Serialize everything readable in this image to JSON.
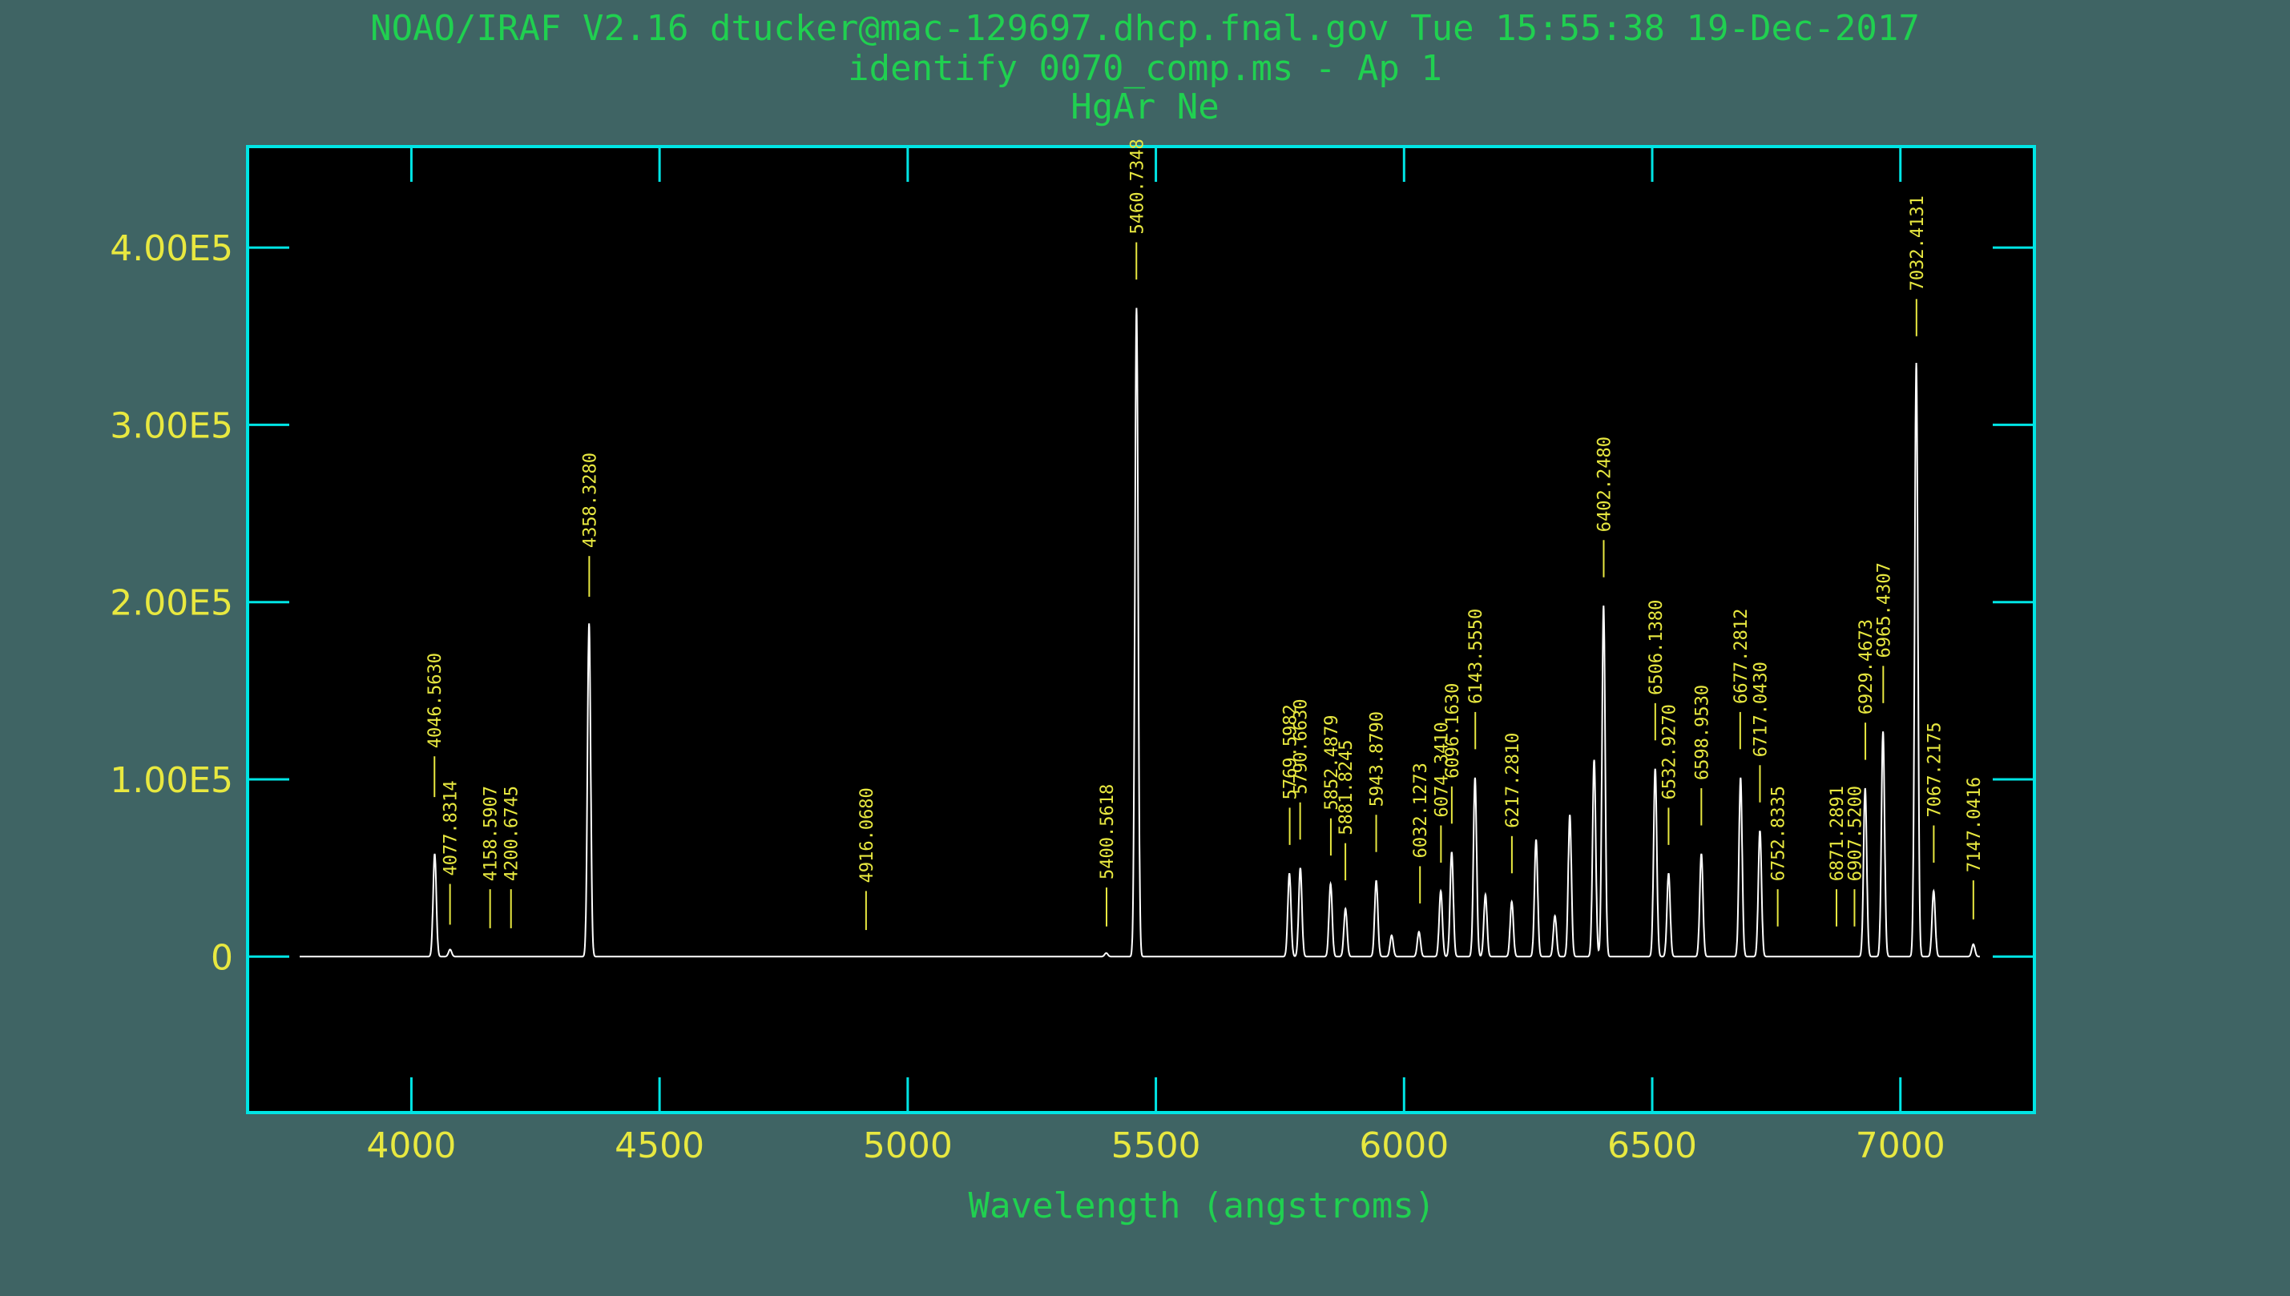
{
  "header": {
    "line1": "NOAO/IRAF V2.16 dtucker@mac-129697.dhcp.fnal.gov Tue 15:55:38 19-Dec-2017",
    "line2": "identify 0070_comp.ms - Ap 1",
    "line3": "HgAr Ne"
  },
  "colors": {
    "background": "#3f6464",
    "plot_background": "#000000",
    "frame": "#00e5e5",
    "header_text": "#20d050",
    "tick_labels": "#e8e840",
    "markers": "#e8e840",
    "spectrum": "#ffffff"
  },
  "chart_data": {
    "type": "line",
    "xlabel": "Wavelength (angstroms)",
    "ylabel": "",
    "xlim": [
      3670,
      7270
    ],
    "ylim": [
      -88000,
      457000
    ],
    "xticks": [
      {
        "value": 4000,
        "label": "4000"
      },
      {
        "value": 4500,
        "label": "4500"
      },
      {
        "value": 5000,
        "label": "5000"
      },
      {
        "value": 5500,
        "label": "5500"
      },
      {
        "value": 6000,
        "label": "6000"
      },
      {
        "value": 6500,
        "label": "6500"
      },
      {
        "value": 7000,
        "label": "7000"
      }
    ],
    "yticks": [
      {
        "value": 0,
        "label": "0"
      },
      {
        "value": 100000,
        "label": "1.00E5"
      },
      {
        "value": 200000,
        "label": "2.00E5"
      },
      {
        "value": 300000,
        "label": "3.00E5"
      },
      {
        "value": 400000,
        "label": "4.00E5"
      }
    ],
    "spectrum_range": [
      3775,
      7160
    ],
    "baseline": 0,
    "peaks": [
      {
        "x": 4047,
        "y": 58000
      },
      {
        "x": 4078,
        "y": 4000
      },
      {
        "x": 4358,
        "y": 188000
      },
      {
        "x": 5461,
        "y": 366000
      },
      {
        "x": 5400,
        "y": 2000
      },
      {
        "x": 5769,
        "y": 47000
      },
      {
        "x": 5791,
        "y": 50000
      },
      {
        "x": 5852,
        "y": 41000
      },
      {
        "x": 5882,
        "y": 27000
      },
      {
        "x": 5944,
        "y": 43000
      },
      {
        "x": 5975,
        "y": 12000
      },
      {
        "x": 6030,
        "y": 14000
      },
      {
        "x": 6074,
        "y": 37000
      },
      {
        "x": 6096,
        "y": 59000
      },
      {
        "x": 6143,
        "y": 101000
      },
      {
        "x": 6164,
        "y": 35000
      },
      {
        "x": 6217,
        "y": 31000
      },
      {
        "x": 6266,
        "y": 66000
      },
      {
        "x": 6304,
        "y": 23000
      },
      {
        "x": 6334,
        "y": 80000
      },
      {
        "x": 6383,
        "y": 111000
      },
      {
        "x": 6402,
        "y": 198000
      },
      {
        "x": 6506,
        "y": 106000
      },
      {
        "x": 6533,
        "y": 47000
      },
      {
        "x": 6599,
        "y": 58000
      },
      {
        "x": 6678,
        "y": 101000
      },
      {
        "x": 6717,
        "y": 71000
      },
      {
        "x": 6929,
        "y": 95000
      },
      {
        "x": 6965,
        "y": 127000
      },
      {
        "x": 7032,
        "y": 335000
      },
      {
        "x": 7067,
        "y": 37000
      },
      {
        "x": 7147,
        "y": 7000
      }
    ],
    "line_ids": [
      {
        "wavelength": 4046.563,
        "label": "4046.5630",
        "tick_y": [
          90000,
          113000
        ]
      },
      {
        "wavelength": 4077.8314,
        "label": "4077.8314",
        "tick_y": [
          18000,
          41000
        ]
      },
      {
        "wavelength": 4158.5907,
        "label": "4158.5907",
        "tick_y": [
          16000,
          38000
        ]
      },
      {
        "wavelength": 4200.6745,
        "label": "4200.6745",
        "tick_y": [
          16000,
          38000
        ]
      },
      {
        "wavelength": 4358.328,
        "label": "4358.3280",
        "tick_y": [
          203000,
          226000
        ]
      },
      {
        "wavelength": 4916.068,
        "label": "4916.0680",
        "tick_y": [
          15000,
          37000
        ]
      },
      {
        "wavelength": 5400.5618,
        "label": "5400.5618",
        "tick_y": [
          17000,
          39000
        ]
      },
      {
        "wavelength": 5460.7348,
        "label": "5460.7348",
        "tick_y": [
          382000,
          403000
        ]
      },
      {
        "wavelength": 5769.5982,
        "label": "5769.5982",
        "tick_y": [
          63000,
          84000
        ]
      },
      {
        "wavelength": 5790.663,
        "label": "5790.6630",
        "tick_y": [
          66000,
          87000
        ]
      },
      {
        "wavelength": 5852.4879,
        "label": "5852.4879",
        "tick_y": [
          57000,
          78000
        ]
      },
      {
        "wavelength": 5881.8245,
        "label": "5881.8245",
        "tick_y": [
          43000,
          64000
        ]
      },
      {
        "wavelength": 5943.879,
        "label": "5943.8790",
        "tick_y": [
          59000,
          80000
        ]
      },
      {
        "wavelength": 6032.1273,
        "label": "6032.1273",
        "tick_y": [
          30000,
          51000
        ]
      },
      {
        "wavelength": 6074.341,
        "label": "6074.3410",
        "tick_y": [
          53000,
          74000
        ]
      },
      {
        "wavelength": 6096.163,
        "label": "6096.1630",
        "tick_y": [
          75000,
          96000
        ]
      },
      {
        "wavelength": 6143.555,
        "label": "6143.5550",
        "tick_y": [
          117000,
          138000
        ]
      },
      {
        "wavelength": 6217.281,
        "label": "6217.2810",
        "tick_y": [
          47000,
          68000
        ]
      },
      {
        "wavelength": 6402.248,
        "label": "6402.2480",
        "tick_y": [
          214000,
          235000
        ]
      },
      {
        "wavelength": 6506.138,
        "label": "6506.1380",
        "tick_y": [
          122000,
          143000
        ]
      },
      {
        "wavelength": 6532.927,
        "label": "6532.9270",
        "tick_y": [
          63000,
          84000
        ]
      },
      {
        "wavelength": 6598.953,
        "label": "6598.9530",
        "tick_y": [
          74000,
          95000
        ]
      },
      {
        "wavelength": 6677.2812,
        "label": "6677.2812",
        "tick_y": [
          117000,
          138000
        ]
      },
      {
        "wavelength": 6717.043,
        "label": "6717.0430",
        "tick_y": [
          87000,
          108000
        ]
      },
      {
        "wavelength": 6752.8335,
        "label": "6752.8335",
        "tick_y": [
          17000,
          38000
        ]
      },
      {
        "wavelength": 6871.2891,
        "label": "6871.2891",
        "tick_y": [
          17000,
          38000
        ]
      },
      {
        "wavelength": 6907.52,
        "label": "6907.5200",
        "tick_y": [
          17000,
          38000
        ]
      },
      {
        "wavelength": 6929.4673,
        "label": "6929.4673",
        "tick_y": [
          111000,
          132000
        ]
      },
      {
        "wavelength": 6965.4307,
        "label": "6965.4307",
        "tick_y": [
          143000,
          164000
        ]
      },
      {
        "wavelength": 7032.4131,
        "label": "7032.4131",
        "tick_y": [
          350000,
          371000
        ]
      },
      {
        "wavelength": 7067.2175,
        "label": "7067.2175",
        "tick_y": [
          53000,
          74000
        ]
      },
      {
        "wavelength": 7147.0416,
        "label": "7147.0416",
        "tick_y": [
          21000,
          43000
        ]
      }
    ]
  }
}
